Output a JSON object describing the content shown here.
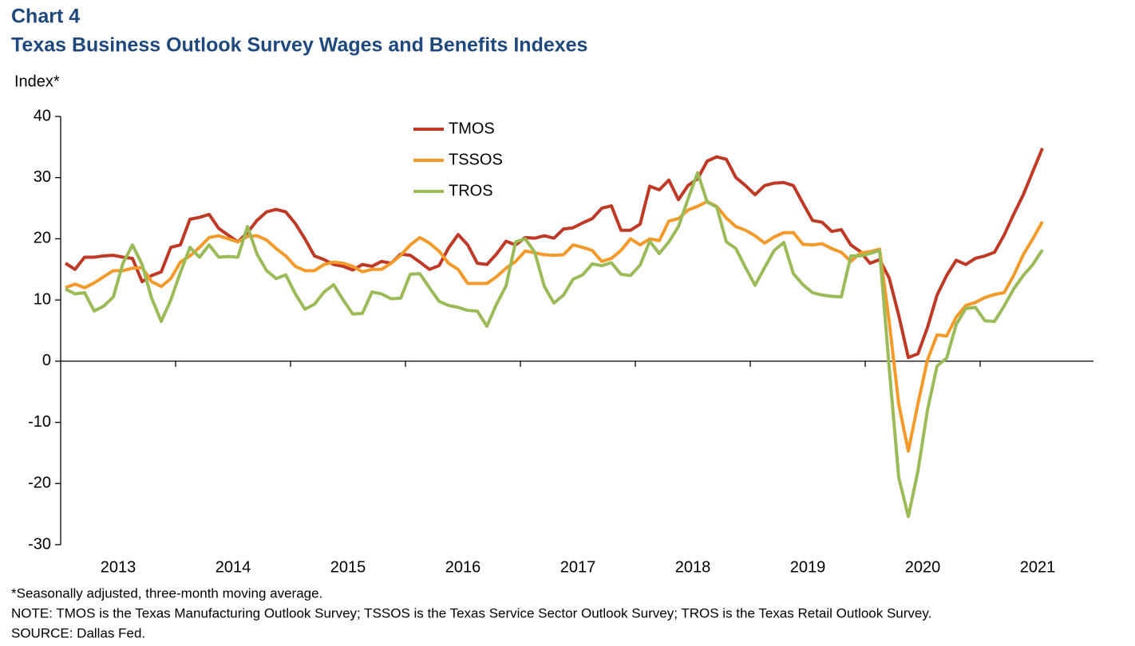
{
  "chart_data": {
    "type": "line",
    "title": "Chart 4",
    "subtitle": "Texas Business Outlook Survey Wages and Benefits Indexes",
    "ylabel": "Index*",
    "notes": [
      "*Seasonally adjusted, three-month moving average.",
      "NOTE: TMOS is the Texas Manufacturing  Outlook Survey; TSSOS is the Texas Service Sector Outlook Survey; TROS is the Texas Retail Outlook Survey.",
      "SOURCE: Dallas Fed."
    ],
    "categories": [
      null,
      null,
      null,
      null,
      null,
      null,
      "2013",
      null,
      null,
      null,
      null,
      null,
      null,
      null,
      null,
      null,
      null,
      null,
      "2014",
      null,
      null,
      null,
      null,
      null,
      null,
      null,
      null,
      null,
      null,
      null,
      "2015",
      null,
      null,
      null,
      null,
      null,
      null,
      null,
      null,
      null,
      null,
      null,
      "2016",
      null,
      null,
      null,
      null,
      null,
      null,
      null,
      null,
      null,
      null,
      null,
      "2017",
      null,
      null,
      null,
      null,
      null,
      null,
      null,
      null,
      null,
      null,
      null,
      "2018",
      null,
      null,
      null,
      null,
      null,
      null,
      null,
      null,
      null,
      null,
      null,
      "2019",
      null,
      null,
      null,
      null,
      null,
      null,
      null,
      null,
      null,
      null,
      null,
      "2020",
      null,
      null,
      null,
      null,
      null,
      null,
      null,
      null,
      null,
      null,
      null,
      "2021"
    ],
    "series": [
      {
        "name": "TMOS",
        "color": "#be3a26",
        "values": [
          16,
          15,
          17,
          17,
          17.2,
          17.3,
          17,
          16.8,
          13,
          14,
          14.6,
          18.6,
          19,
          23.2,
          23.5,
          24,
          21.7,
          20.6,
          19.5,
          21,
          23,
          24.4,
          24.8,
          24.4,
          22.5,
          20,
          17.2,
          16.6,
          15.8,
          15.5,
          14.9,
          15.8,
          15.5,
          16.3,
          16,
          17.5,
          17.3,
          16.2,
          15,
          15.6,
          18.5,
          20.7,
          19,
          16,
          15.8,
          17.5,
          19.6,
          19,
          20.2,
          20.1,
          20.5,
          20.1,
          21.6,
          21.8,
          22.6,
          23.3,
          25,
          25.4,
          21.4,
          21.4,
          22.4,
          28.6,
          28,
          29.6,
          26.4,
          28.7,
          29.8,
          32.7,
          33.4,
          33,
          30,
          28.7,
          27.2,
          28.7,
          29.1,
          29.2,
          28.7,
          25.8,
          23,
          22.7,
          21.2,
          21.5,
          19,
          17.9,
          16,
          16.6,
          13.6,
          7.5,
          0.6,
          1.2,
          5.5,
          10.8,
          14,
          16.5,
          15.8,
          16.8,
          17.2,
          17.8,
          20.6,
          24,
          27.2,
          31,
          34.8
        ]
      },
      {
        "name": "TSSOS",
        "color": "#f39a2b",
        "values": [
          12,
          12.6,
          12,
          12.8,
          13.8,
          14.8,
          14.8,
          15.2,
          15.3,
          13,
          12.2,
          13.5,
          16.2,
          17.2,
          18.6,
          20.2,
          20.5,
          20,
          19.5,
          20.4,
          20.5,
          19.8,
          18.4,
          17.2,
          15.5,
          14.8,
          14.8,
          15.8,
          16.2,
          16,
          15.5,
          14.6,
          15,
          15,
          16,
          17.3,
          19,
          20.2,
          19.3,
          18,
          16,
          15,
          12.7,
          12.7,
          12.7,
          13.8,
          15.2,
          16.3,
          18,
          17.7,
          17.4,
          17.3,
          17.4,
          19,
          18.6,
          18.1,
          16.3,
          16.8,
          18.1,
          20,
          19,
          20,
          19.7,
          22.9,
          23.3,
          24.7,
          25.3,
          26.1,
          25.3,
          23.4,
          22,
          21.4,
          20.5,
          19.3,
          20.3,
          21,
          21,
          19.1,
          19,
          19.2,
          18.4,
          17.8,
          16.3,
          17.7,
          17.9,
          18.3,
          6.5,
          -7,
          -14.7,
          -7,
          0.2,
          4.3,
          4.1,
          7.2,
          9.1,
          9.6,
          10.4,
          10.9,
          11.2,
          14,
          17.4,
          20,
          22.8
        ]
      },
      {
        "name": "TROS",
        "color": "#9bbb59",
        "values": [
          11.8,
          11,
          11.2,
          8.2,
          9,
          10.5,
          16,
          19,
          15.8,
          10.3,
          6.5,
          10,
          14.5,
          18.6,
          17,
          19,
          17,
          17.1,
          17,
          22,
          17.5,
          14.8,
          13.5,
          14.1,
          11,
          8.5,
          9.3,
          11.3,
          12.5,
          10,
          7.7,
          7.8,
          11.3,
          11,
          10.2,
          10.3,
          14.2,
          14.3,
          12,
          9.8,
          9.1,
          8.8,
          8.3,
          8.2,
          5.7,
          9.3,
          12.3,
          19.5,
          20,
          17.8,
          12.2,
          9.5,
          10.8,
          13.4,
          14.1,
          15.9,
          15.6,
          16.1,
          14.2,
          14,
          15.7,
          19.6,
          17.6,
          19.5,
          22,
          26.5,
          30.8,
          26,
          25.2,
          19.5,
          18.4,
          15.3,
          12.4,
          15.3,
          18.1,
          19.4,
          14.3,
          12.5,
          11.2,
          10.8,
          10.6,
          10.5,
          17.2,
          17.2,
          17.6,
          18.1,
          -1,
          -19,
          -25.4,
          -18,
          -8,
          -0.8,
          0.5,
          6,
          8.6,
          8.8,
          6.6,
          6.5,
          9,
          11.8,
          14,
          15.8,
          18.2
        ]
      }
    ],
    "ylim": [
      -30,
      40
    ],
    "yticks": [
      -30,
      -20,
      -10,
      0,
      10,
      20,
      30,
      40
    ],
    "grid": false,
    "legend": "upper center"
  }
}
